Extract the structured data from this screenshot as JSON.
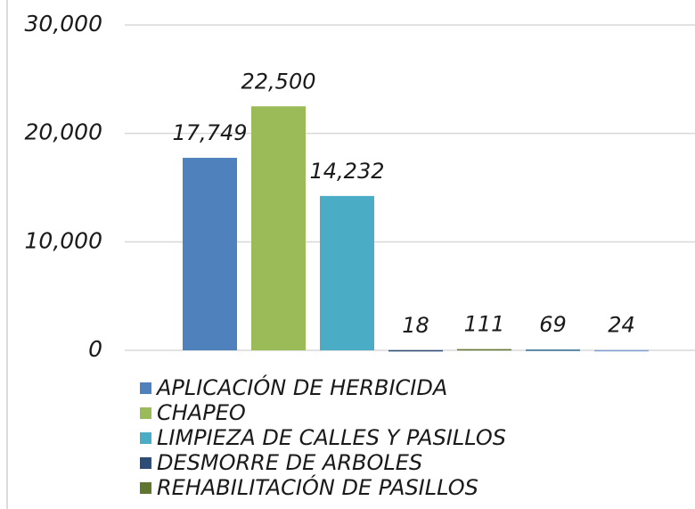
{
  "chart_data": {
    "type": "bar",
    "categories": [
      "APLICACIÓN DE HERBICIDA",
      "CHAPEO",
      "LIMPIEZA DE CALLES Y PASILLOS",
      "DESMORRE DE ARBOLES",
      "REHABILITACIÓN DE PASILLOS",
      null,
      null
    ],
    "values": [
      17749,
      22500,
      14232,
      18,
      111,
      69,
      24
    ],
    "value_labels": [
      "17,749",
      "22,500",
      "14,232",
      "18",
      "111",
      "69",
      "24"
    ],
    "colors": [
      "#4f81bd",
      "#9bbb59",
      "#4bacc6",
      "#2c4d75",
      "#5f7530",
      "#2e6a8e",
      "#7fa0cf"
    ],
    "ylim": [
      0,
      30000
    ],
    "yticks": [
      0,
      {
        "value": 10000,
        "label": "10,000"
      },
      {
        "value": 20000,
        "label": "20,000"
      },
      {
        "value": 30000,
        "label": "30,000"
      }
    ],
    "grid": true,
    "legend": "bottom"
  }
}
